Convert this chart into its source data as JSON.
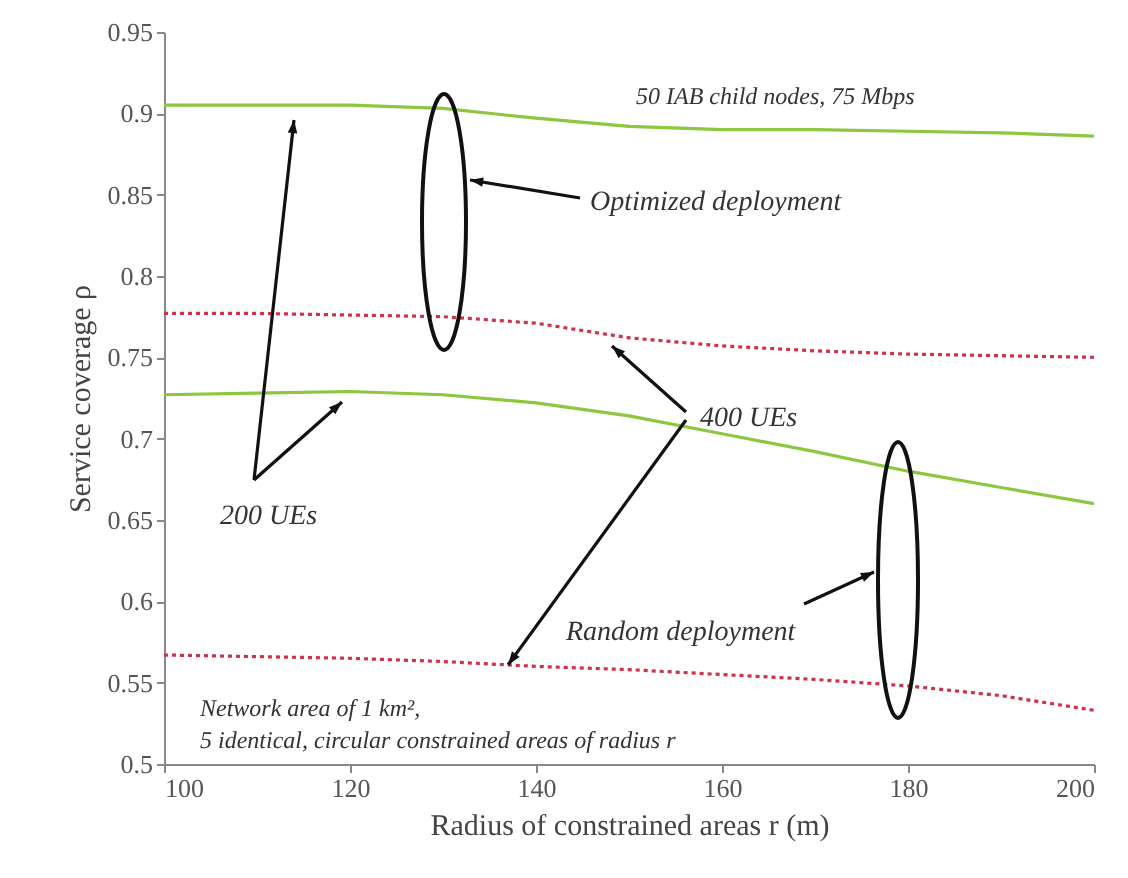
{
  "chart_data": {
    "type": "line",
    "xlabel": "Radius of constrained areas r (m)",
    "ylabel": "Service coverage ρ",
    "x": [
      100,
      110,
      120,
      130,
      140,
      150,
      160,
      170,
      180,
      190,
      200
    ],
    "series": [
      {
        "color": "#8dc63f",
        "line_style": "solid",
        "values": [
          0.905,
          0.905,
          0.905,
          0.903,
          0.897,
          0.892,
          0.89,
          0.89,
          0.889,
          0.888,
          0.886
        ]
      },
      {
        "color": "#d0304a",
        "line_style": "dotted",
        "values": [
          0.777,
          0.777,
          0.776,
          0.775,
          0.771,
          0.762,
          0.757,
          0.754,
          0.752,
          0.751,
          0.75
        ]
      },
      {
        "color": "#8dc63f",
        "line_style": "solid",
        "values": [
          0.727,
          0.728,
          0.729,
          0.727,
          0.722,
          0.714,
          0.703,
          0.692,
          0.68,
          0.67,
          0.66
        ]
      },
      {
        "color": "#d0304a",
        "line_style": "dotted",
        "values": [
          0.567,
          0.566,
          0.565,
          0.563,
          0.56,
          0.558,
          0.555,
          0.552,
          0.548,
          0.542,
          0.533
        ]
      }
    ],
    "xlim": [
      100,
      200
    ],
    "xticks": [
      100,
      120,
      140,
      160,
      180,
      200
    ],
    "ylim": [
      0.5,
      0.95
    ],
    "yticks": [
      0.5,
      0.55,
      0.6,
      0.65,
      0.7,
      0.75,
      0.8,
      0.85,
      0.9,
      0.95
    ],
    "grid": false,
    "marker": "none",
    "annotations": [
      "50 IAB child nodes, 75 Mbps",
      "Optimized deployment",
      {
        "text": "400 UEs",
        "x": 137,
        "y": 0.561
      },
      "200 UEs",
      "Random deployment",
      "Network area of 1 km²,",
      "5 identical, circular constrained areas of radius r"
    ]
  }
}
